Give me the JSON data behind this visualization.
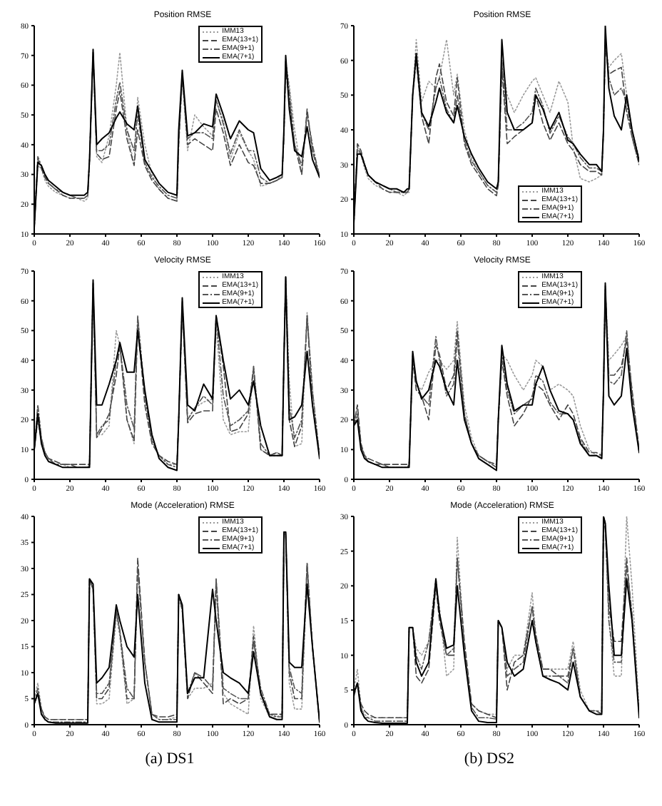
{
  "chart_data": [
    {
      "type": "line",
      "title": "Position RMSE",
      "legend": "top right",
      "marker": "none",
      "xlim": [
        0,
        160
      ],
      "xticks": [
        0,
        20,
        40,
        60,
        80,
        100,
        120,
        140,
        160
      ],
      "ylim": [
        10,
        80
      ],
      "yticks": [
        10,
        20,
        30,
        40,
        50,
        60,
        70,
        80
      ],
      "x": [
        0,
        2,
        4,
        6,
        8,
        12,
        16,
        20,
        24,
        28,
        30,
        31,
        33,
        35,
        38,
        42,
        46,
        48,
        52,
        56,
        58,
        62,
        66,
        70,
        75,
        80,
        81,
        83,
        86,
        90,
        95,
        100,
        102,
        106,
        110,
        115,
        120,
        123,
        127,
        132,
        136,
        139,
        140,
        141,
        143,
        146,
        150,
        153,
        156,
        160
      ],
      "series": [
        {
          "name": "IMM13",
          "color": "#9a9a9a",
          "line_style": "dotted",
          "values": [
            12,
            33,
            32,
            28,
            26,
            24,
            23,
            22,
            22,
            21,
            22,
            34,
            70,
            36,
            34,
            43,
            60,
            71,
            45,
            33,
            56,
            40,
            30,
            25,
            22,
            21,
            40,
            62,
            38,
            50,
            46,
            43,
            55,
            48,
            35,
            44,
            38,
            35,
            26,
            27,
            28,
            30,
            42,
            68,
            60,
            45,
            30,
            51,
            38,
            30
          ]
        },
        {
          "name": "EMA(13+1)",
          "color": "#444444",
          "line_style": "dashed",
          "values": [
            12,
            35,
            32,
            29,
            27,
            25,
            23,
            22,
            22,
            22,
            23,
            35,
            71,
            37,
            35,
            36,
            52,
            58,
            42,
            33,
            45,
            33,
            28,
            25,
            22,
            21,
            40,
            63,
            40,
            42,
            40,
            38,
            52,
            44,
            33,
            40,
            34,
            33,
            27,
            27,
            28,
            29,
            43,
            65,
            55,
            40,
            30,
            52,
            38,
            29
          ]
        },
        {
          "name": "EMA(9+1)",
          "color": "#555555",
          "line_style": "dashdot",
          "values": [
            12,
            36,
            33,
            30,
            27,
            25,
            24,
            23,
            22,
            22,
            23,
            35,
            71,
            38,
            38,
            40,
            55,
            61,
            45,
            38,
            50,
            34,
            29,
            26,
            23,
            22,
            42,
            64,
            42,
            44,
            44,
            42,
            55,
            47,
            37,
            45,
            38,
            38,
            29,
            27,
            28,
            29,
            44,
            68,
            58,
            40,
            33,
            50,
            40,
            29
          ]
        },
        {
          "name": "EMA(7+1)",
          "color": "#000000",
          "line_style": "solid",
          "values": [
            12,
            34,
            33,
            30,
            28,
            26,
            24,
            23,
            23,
            23,
            24,
            35,
            72,
            40,
            42,
            44,
            49,
            51,
            47,
            45,
            53,
            35,
            31,
            27,
            24,
            23,
            45,
            65,
            43,
            44,
            47,
            46,
            57,
            50,
            42,
            48,
            45,
            44,
            32,
            28,
            29,
            30,
            45,
            70,
            52,
            38,
            36,
            46,
            35,
            29
          ]
        }
      ]
    },
    {
      "type": "line",
      "title": "Position RMSE",
      "legend": "bottom right",
      "marker": "none",
      "xlim": [
        0,
        160
      ],
      "xticks": [
        0,
        20,
        40,
        60,
        80,
        100,
        120,
        140,
        160
      ],
      "ylim": [
        10,
        70
      ],
      "yticks": [
        10,
        20,
        30,
        40,
        50,
        60,
        70
      ],
      "x": [
        0,
        2,
        4,
        6,
        8,
        12,
        16,
        20,
        24,
        28,
        30,
        31,
        33,
        35,
        38,
        42,
        46,
        48,
        52,
        56,
        58,
        62,
        66,
        70,
        75,
        80,
        81,
        83,
        86,
        90,
        95,
        100,
        102,
        106,
        110,
        115,
        120,
        123,
        127,
        132,
        136,
        139,
        140,
        141,
        143,
        146,
        150,
        153,
        156,
        160
      ],
      "series": [
        {
          "name": "IMM13",
          "color": "#9a9a9a",
          "line_style": "dotted",
          "values": [
            13,
            34,
            33,
            29,
            26,
            24,
            23,
            22,
            22,
            21,
            22,
            22,
            50,
            66,
            48,
            54,
            52,
            55,
            66,
            50,
            56,
            40,
            32,
            28,
            24,
            22,
            24,
            60,
            50,
            45,
            50,
            54,
            55,
            50,
            45,
            54,
            48,
            35,
            26,
            25,
            26,
            27,
            40,
            65,
            58,
            60,
            62,
            50,
            40,
            32
          ]
        },
        {
          "name": "EMA(13+1)",
          "color": "#444444",
          "line_style": "dashed",
          "values": [
            13,
            36,
            34,
            30,
            27,
            25,
            23,
            22,
            22,
            22,
            22,
            23,
            50,
            60,
            44,
            36,
            55,
            59,
            48,
            44,
            55,
            36,
            30,
            27,
            23,
            21,
            24,
            58,
            36,
            38,
            40,
            42,
            50,
            42,
            37,
            42,
            36,
            34,
            30,
            28,
            28,
            27,
            40,
            64,
            56,
            57,
            58,
            45,
            38,
            30
          ]
        },
        {
          "name": "EMA(9+1)",
          "color": "#555555",
          "line_style": "dashdot",
          "values": [
            13,
            35,
            33,
            30,
            27,
            25,
            24,
            23,
            22,
            22,
            22,
            23,
            50,
            61,
            45,
            40,
            52,
            55,
            46,
            42,
            50,
            37,
            31,
            28,
            24,
            22,
            25,
            60,
            40,
            40,
            42,
            45,
            52,
            47,
            39,
            44,
            38,
            36,
            32,
            29,
            29,
            28,
            40,
            66,
            55,
            50,
            52,
            48,
            38,
            30
          ]
        },
        {
          "name": "EMA(7+1)",
          "color": "#000000",
          "line_style": "solid",
          "values": [
            13,
            33,
            33,
            30,
            27,
            25,
            24,
            23,
            23,
            22,
            23,
            23,
            50,
            62,
            45,
            41,
            48,
            52,
            45,
            42,
            47,
            38,
            33,
            29,
            25,
            23,
            25,
            66,
            45,
            40,
            40,
            42,
            50,
            46,
            40,
            45,
            37,
            36,
            33,
            30,
            30,
            28,
            40,
            70,
            52,
            44,
            40,
            50,
            40,
            31
          ]
        }
      ]
    },
    {
      "type": "line",
      "title": "Velocity RMSE",
      "legend": "top right",
      "marker": "none",
      "xlim": [
        0,
        160
      ],
      "xticks": [
        0,
        20,
        40,
        60,
        80,
        100,
        120,
        140,
        160
      ],
      "ylim": [
        0,
        70
      ],
      "yticks": [
        0,
        10,
        20,
        30,
        40,
        50,
        60,
        70
      ],
      "x": [
        0,
        2,
        4,
        6,
        8,
        12,
        16,
        20,
        24,
        28,
        30,
        31,
        33,
        35,
        38,
        42,
        46,
        48,
        52,
        56,
        58,
        62,
        66,
        70,
        75,
        80,
        81,
        83,
        86,
        90,
        95,
        100,
        102,
        106,
        110,
        115,
        120,
        123,
        127,
        132,
        136,
        139,
        140,
        141,
        143,
        146,
        150,
        153,
        156,
        160
      ],
      "series": [
        {
          "name": "IMM13",
          "color": "#9a9a9a",
          "line_style": "dotted",
          "values": [
            10,
            25,
            14,
            9,
            7,
            5,
            5,
            4,
            4,
            4,
            4,
            5,
            65,
            15,
            15,
            18,
            50,
            45,
            20,
            12,
            55,
            28,
            14,
            8,
            5,
            5,
            20,
            58,
            20,
            24,
            26,
            27,
            52,
            20,
            15,
            16,
            16,
            38,
            10,
            8,
            9,
            8,
            40,
            68,
            33,
            11,
            12,
            56,
            30,
            7
          ]
        },
        {
          "name": "EMA(13+1)",
          "color": "#444444",
          "line_style": "dashed",
          "values": [
            10,
            20,
            13,
            9,
            7,
            6,
            5,
            5,
            5,
            5,
            5,
            5,
            66,
            14,
            17,
            22,
            35,
            45,
            20,
            13,
            52,
            25,
            12,
            8,
            6,
            5,
            20,
            58,
            19,
            22,
            23,
            23,
            55,
            38,
            16,
            17,
            22,
            37,
            10,
            8,
            9,
            8,
            40,
            67,
            20,
            11,
            18,
            55,
            25,
            8
          ]
        },
        {
          "name": "EMA(9+1)",
          "color": "#555555",
          "line_style": "dashdot",
          "values": [
            10,
            25,
            14,
            9,
            7,
            5,
            5,
            5,
            4,
            4,
            4,
            5,
            66,
            15,
            18,
            20,
            40,
            45,
            25,
            17,
            55,
            28,
            13,
            8,
            5,
            4,
            20,
            60,
            20,
            24,
            28,
            25,
            55,
            28,
            18,
            20,
            23,
            38,
            12,
            8,
            8,
            8,
            40,
            68,
            25,
            14,
            20,
            55,
            30,
            8
          ]
        },
        {
          "name": "EMA(7+1)",
          "color": "#000000",
          "line_style": "solid",
          "values": [
            10,
            22,
            12,
            8,
            6,
            5,
            4,
            4,
            4,
            4,
            4,
            4,
            67,
            25,
            25,
            32,
            40,
            46,
            36,
            36,
            50,
            30,
            15,
            7,
            4,
            3,
            20,
            61,
            25,
            23,
            32,
            27,
            55,
            40,
            27,
            30,
            25,
            33,
            18,
            8,
            8,
            8,
            40,
            68,
            20,
            21,
            25,
            43,
            25,
            7
          ]
        }
      ]
    },
    {
      "type": "line",
      "title": "Velocity RMSE",
      "legend": "top right",
      "marker": "none",
      "xlim": [
        0,
        160
      ],
      "xticks": [
        0,
        20,
        40,
        60,
        80,
        100,
        120,
        140,
        160
      ],
      "ylim": [
        0,
        70
      ],
      "yticks": [
        0,
        10,
        20,
        30,
        40,
        50,
        60,
        70
      ],
      "x": [
        0,
        2,
        4,
        6,
        8,
        12,
        16,
        20,
        24,
        28,
        30,
        31,
        33,
        35,
        38,
        42,
        46,
        48,
        52,
        56,
        58,
        62,
        66,
        70,
        75,
        80,
        81,
        83,
        86,
        90,
        95,
        100,
        102,
        106,
        110,
        115,
        120,
        123,
        127,
        132,
        136,
        139,
        140,
        141,
        143,
        146,
        150,
        153,
        156,
        160
      ],
      "series": [
        {
          "name": "IMM13",
          "color": "#9a9a9a",
          "line_style": "dotted",
          "values": [
            18,
            25,
            12,
            8,
            6,
            5,
            5,
            4,
            4,
            4,
            4,
            5,
            40,
            32,
            30,
            36,
            40,
            40,
            37,
            40,
            53,
            25,
            14,
            8,
            6,
            5,
            20,
            42,
            40,
            35,
            30,
            35,
            40,
            38,
            30,
            32,
            30,
            28,
            18,
            10,
            8,
            8,
            30,
            64,
            40,
            42,
            45,
            48,
            30,
            10
          ]
        },
        {
          "name": "EMA(13+1)",
          "color": "#444444",
          "line_style": "dashed",
          "values": [
            18,
            25,
            12,
            8,
            7,
            6,
            5,
            5,
            5,
            5,
            5,
            5,
            40,
            30,
            28,
            20,
            45,
            42,
            30,
            35,
            50,
            22,
            12,
            8,
            6,
            5,
            20,
            40,
            28,
            18,
            22,
            28,
            32,
            30,
            25,
            20,
            25,
            22,
            14,
            9,
            9,
            8,
            30,
            64,
            35,
            35,
            38,
            47,
            30,
            10
          ]
        },
        {
          "name": "EMA(9+1)",
          "color": "#555555",
          "line_style": "dashdot",
          "values": [
            18,
            22,
            11,
            8,
            6,
            5,
            5,
            4,
            4,
            4,
            4,
            5,
            42,
            32,
            28,
            25,
            48,
            40,
            28,
            32,
            47,
            22,
            12,
            8,
            6,
            4,
            20,
            42,
            30,
            22,
            25,
            27,
            35,
            33,
            26,
            22,
            22,
            20,
            13,
            8,
            8,
            7,
            30,
            65,
            33,
            32,
            35,
            50,
            28,
            9
          ]
        },
        {
          "name": "EMA(7+1)",
          "color": "#000000",
          "line_style": "solid",
          "values": [
            18,
            20,
            10,
            7,
            6,
            5,
            4,
            4,
            4,
            4,
            4,
            4,
            43,
            33,
            27,
            30,
            40,
            38,
            30,
            25,
            40,
            20,
            12,
            7,
            5,
            3,
            20,
            45,
            32,
            23,
            25,
            25,
            32,
            38,
            30,
            23,
            22,
            20,
            12,
            8,
            8,
            7,
            30,
            66,
            28,
            25,
            28,
            44,
            25,
            9
          ]
        }
      ]
    },
    {
      "type": "line",
      "title": "Mode (Acceleration) RMSE",
      "legend": "top right",
      "marker": "none",
      "xlim": [
        0,
        160
      ],
      "xticks": [
        0,
        20,
        40,
        60,
        80,
        100,
        120,
        140,
        160
      ],
      "ylim": [
        0,
        40
      ],
      "yticks": [
        0,
        5,
        10,
        15,
        20,
        25,
        30,
        35,
        40
      ],
      "annotations": [
        "(a) DS1"
      ],
      "x": [
        0,
        2,
        4,
        6,
        8,
        12,
        16,
        20,
        24,
        28,
        30,
        31,
        33,
        35,
        38,
        42,
        46,
        48,
        52,
        56,
        58,
        62,
        66,
        70,
        75,
        80,
        81,
        83,
        86,
        90,
        95,
        100,
        102,
        106,
        110,
        115,
        120,
        123,
        127,
        132,
        136,
        139,
        140,
        141,
        143,
        146,
        150,
        153,
        156,
        160
      ],
      "series": [
        {
          "name": "IMM13",
          "color": "#9a9a9a",
          "line_style": "dotted",
          "values": [
            5,
            8,
            3,
            1.5,
            1,
            1,
            1,
            1,
            1,
            1,
            1,
            28,
            26,
            4,
            4,
            5,
            21,
            17,
            4,
            5,
            30,
            12,
            2,
            1,
            1,
            1.5,
            25,
            22,
            5,
            7,
            7,
            8,
            26,
            6,
            4,
            3,
            2,
            19,
            5,
            1.5,
            1.5,
            2,
            36,
            37,
            8,
            3,
            3,
            30,
            15,
            0.5
          ]
        },
        {
          "name": "EMA(13+1)",
          "color": "#444444",
          "line_style": "dashed",
          "values": [
            4,
            6,
            3,
            1.5,
            1,
            1,
            1,
            1,
            1,
            1,
            1,
            28,
            26,
            5,
            5,
            7,
            22,
            18,
            5,
            5,
            32,
            12,
            2,
            1.5,
            1.5,
            2,
            25,
            22,
            5,
            10,
            8,
            6,
            28,
            4,
            5,
            4,
            5,
            17,
            6,
            2,
            2,
            2,
            37,
            37,
            10,
            5,
            5,
            31,
            15,
            0.5
          ]
        },
        {
          "name": "EMA(9+1)",
          "color": "#555555",
          "line_style": "dashdot",
          "values": [
            4,
            7,
            3,
            1,
            0.5,
            0.5,
            0.5,
            0.5,
            0.5,
            0.5,
            0.5,
            28,
            26,
            6,
            6,
            8,
            22,
            18,
            7,
            5,
            30,
            12,
            2,
            1,
            1,
            1,
            25,
            22,
            6,
            10,
            9,
            7,
            28,
            7,
            6,
            5,
            5,
            16,
            7,
            2,
            1.5,
            1.5,
            37,
            37,
            11,
            7,
            6,
            31,
            15,
            0.5
          ]
        },
        {
          "name": "EMA(7+1)",
          "color": "#000000",
          "line_style": "solid",
          "values": [
            4,
            6,
            2,
            1,
            0.5,
            0.3,
            0.3,
            0.3,
            0.3,
            0.3,
            0.3,
            28,
            27,
            8,
            9,
            11,
            23,
            20,
            15,
            13,
            25,
            8,
            1,
            0.5,
            0.5,
            0.5,
            25,
            23,
            6,
            9,
            9,
            26,
            20,
            10,
            9,
            8,
            6,
            14,
            6,
            1.5,
            1,
            1,
            37,
            37,
            12,
            11,
            11,
            27,
            15,
            0.5
          ]
        }
      ]
    },
    {
      "type": "line",
      "title": "Mode (Acceleration) RMSE",
      "legend": "top right",
      "marker": "none",
      "xlim": [
        0,
        160
      ],
      "xticks": [
        0,
        20,
        40,
        60,
        80,
        100,
        120,
        140,
        160
      ],
      "ylim": [
        0,
        30
      ],
      "yticks": [
        0,
        5,
        10,
        15,
        20,
        25,
        30
      ],
      "annotations": [
        "(b) DS2"
      ],
      "x": [
        0,
        2,
        4,
        6,
        8,
        12,
        16,
        20,
        24,
        28,
        30,
        31,
        33,
        35,
        38,
        42,
        46,
        48,
        52,
        56,
        58,
        62,
        66,
        70,
        75,
        80,
        81,
        83,
        86,
        90,
        95,
        100,
        102,
        106,
        110,
        115,
        120,
        123,
        127,
        132,
        136,
        139,
        140,
        141,
        143,
        146,
        150,
        153,
        156,
        160
      ],
      "series": [
        {
          "name": "IMM13",
          "color": "#9a9a9a",
          "line_style": "dotted",
          "values": [
            5,
            8,
            2.5,
            1.5,
            1,
            1,
            1,
            1,
            1,
            1,
            1,
            14,
            14,
            11,
            10,
            12,
            20,
            17,
            7,
            8,
            27,
            11,
            3,
            2,
            1.5,
            1.5,
            15,
            14,
            8,
            10,
            10,
            19,
            13,
            8,
            8,
            8,
            8,
            12,
            5,
            2,
            2,
            2,
            30,
            29,
            15,
            7,
            7,
            30,
            20,
            2
          ]
        },
        {
          "name": "EMA(13+1)",
          "color": "#444444",
          "line_style": "dashed",
          "values": [
            4,
            6,
            3,
            2,
            1.5,
            1,
            1,
            1,
            1,
            1,
            1,
            14,
            14,
            7,
            6,
            8,
            20,
            15,
            10,
            10,
            24,
            12,
            3,
            2,
            1.5,
            1,
            15,
            14,
            5,
            9,
            10,
            17,
            13,
            8,
            8,
            7,
            7,
            11,
            4,
            2,
            2,
            1.5,
            30,
            28,
            17,
            12,
            12,
            24,
            15,
            1.5
          ]
        },
        {
          "name": "EMA(9+1)",
          "color": "#555555",
          "line_style": "dashdot",
          "values": [
            4.5,
            6,
            2.5,
            1,
            1,
            0.5,
            0.5,
            0.5,
            0.5,
            0.5,
            0.5,
            14,
            14,
            10,
            8,
            12,
            21,
            16,
            10,
            11,
            24,
            11,
            2.5,
            1,
            1,
            0.8,
            15,
            14,
            7,
            8,
            9,
            17,
            12,
            7,
            7,
            7,
            6,
            11,
            4,
            2,
            2,
            1.5,
            30,
            29,
            15,
            9,
            9,
            23,
            16,
            1.5
          ]
        },
        {
          "name": "EMA(7+1)",
          "color": "#000000",
          "line_style": "solid",
          "values": [
            4.5,
            6,
            2,
            1,
            0.5,
            0.3,
            0.2,
            0.2,
            0.2,
            0.2,
            0.2,
            14,
            14,
            9,
            7,
            9,
            21,
            16,
            11,
            11.5,
            20,
            10,
            2,
            0.5,
            0.3,
            0.3,
            15,
            14,
            9,
            7,
            8,
            15,
            12,
            7,
            6.5,
            6,
            5,
            9,
            4,
            2,
            1.5,
            1.5,
            30,
            29,
            20,
            10,
            10,
            21,
            15,
            1
          ]
        }
      ]
    }
  ]
}
